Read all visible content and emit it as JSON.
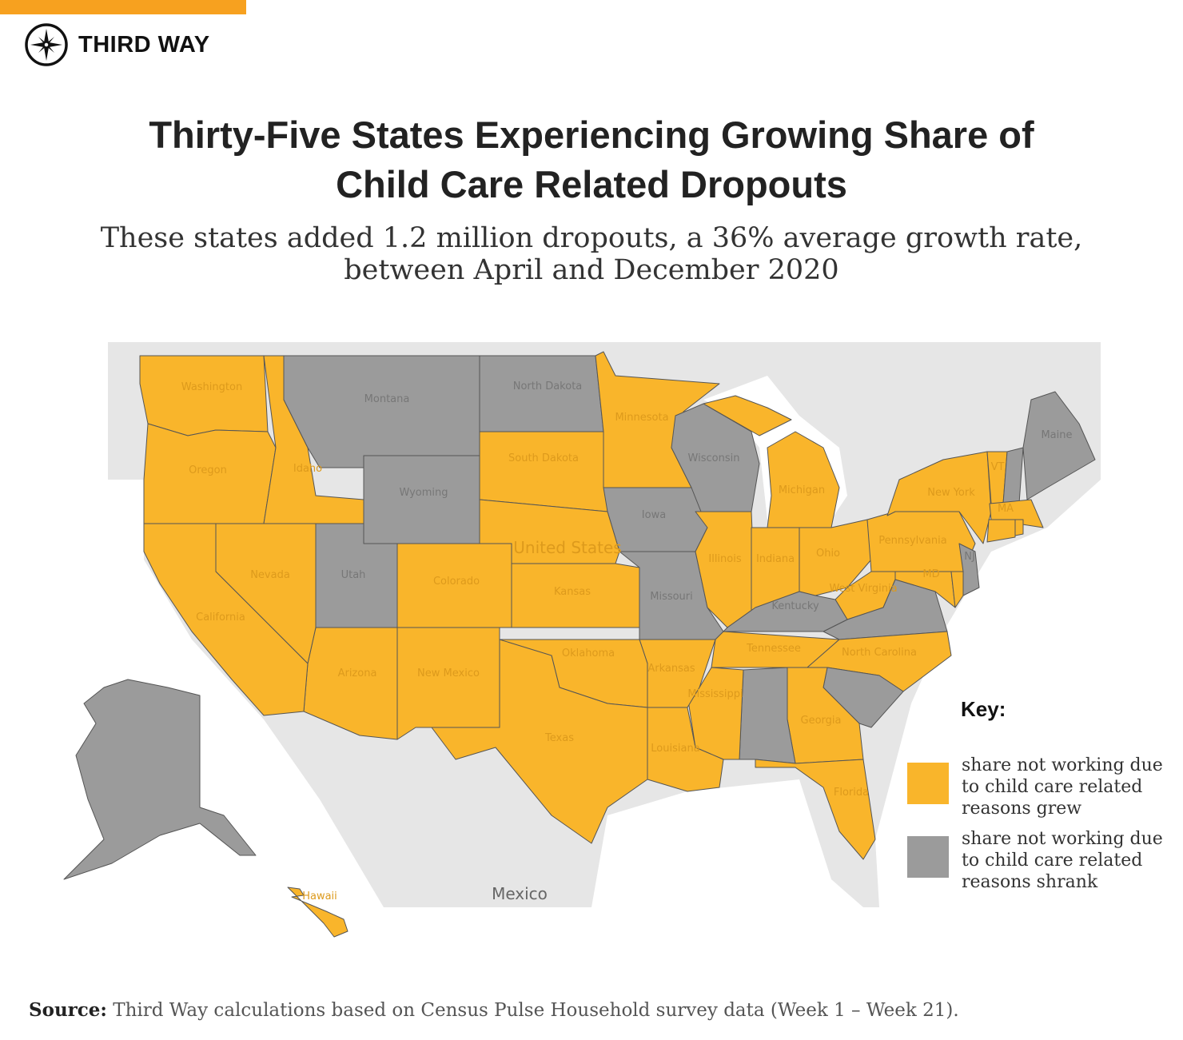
{
  "brand": {
    "name": "THIRD WAY",
    "icon": "compass-icon",
    "accent": "#f7a11f"
  },
  "title_line1": "Thirty-Five States Experiencing Growing Share of",
  "title_line2": "Child Care Related Dropouts",
  "subtitle_line1": "These states added 1.2 million dropouts, a 36% average growth rate,",
  "subtitle_line2": "between April and December 2020",
  "colors": {
    "grew": "#f9b52b",
    "shrank": "#9b9b9b",
    "land": "#e6e6e6",
    "water": "#ffffff"
  },
  "map_labels": {
    "country": "United States",
    "neighbor": "Mexico"
  },
  "states": [
    {
      "id": "WA",
      "label": "Washington",
      "status": "grew"
    },
    {
      "id": "OR",
      "label": "Oregon",
      "status": "grew"
    },
    {
      "id": "ID",
      "label": "Idaho",
      "status": "grew"
    },
    {
      "id": "MT",
      "label": "Montana",
      "status": "shrank"
    },
    {
      "id": "WY",
      "label": "Wyoming",
      "status": "shrank"
    },
    {
      "id": "ND",
      "label": "North Dakota",
      "status": "shrank"
    },
    {
      "id": "SD",
      "label": "South Dakota",
      "status": "grew"
    },
    {
      "id": "MN",
      "label": "Minnesota",
      "status": "grew"
    },
    {
      "id": "WI",
      "label": "Wisconsin",
      "status": "shrank"
    },
    {
      "id": "MI",
      "label": "Michigan",
      "status": "grew"
    },
    {
      "id": "IA",
      "label": "Iowa",
      "status": "shrank"
    },
    {
      "id": "MO",
      "label": "Missouri",
      "status": "shrank"
    },
    {
      "id": "IL",
      "label": "Illinois",
      "status": "grew"
    },
    {
      "id": "IN",
      "label": "Indiana",
      "status": "grew"
    },
    {
      "id": "OH",
      "label": "Ohio",
      "status": "grew"
    },
    {
      "id": "PA",
      "label": "Pennsylvania",
      "status": "grew"
    },
    {
      "id": "NY",
      "label": "New York",
      "status": "grew"
    },
    {
      "id": "VT",
      "label": "VT",
      "status": "grew"
    },
    {
      "id": "NH",
      "label": "",
      "status": "shrank"
    },
    {
      "id": "ME",
      "label": "Maine",
      "status": "shrank"
    },
    {
      "id": "MA",
      "label": "MA",
      "status": "grew"
    },
    {
      "id": "CT",
      "label": "",
      "status": "grew"
    },
    {
      "id": "RI",
      "label": "",
      "status": "grew"
    },
    {
      "id": "NJ",
      "label": "NJ",
      "status": "shrank"
    },
    {
      "id": "MD",
      "label": "MD",
      "status": "grew"
    },
    {
      "id": "DE",
      "label": "",
      "status": "grew"
    },
    {
      "id": "WV",
      "label": "West Virginia",
      "status": "grew"
    },
    {
      "id": "VA",
      "label": "",
      "status": "shrank"
    },
    {
      "id": "KY",
      "label": "Kentucky",
      "status": "shrank"
    },
    {
      "id": "TN",
      "label": "Tennessee",
      "status": "grew"
    },
    {
      "id": "NC",
      "label": "North Carolina",
      "status": "grew"
    },
    {
      "id": "SC",
      "label": "",
      "status": "shrank"
    },
    {
      "id": "GA",
      "label": "Georgia",
      "status": "grew"
    },
    {
      "id": "AL",
      "label": "",
      "status": "shrank"
    },
    {
      "id": "MS",
      "label": "Mississippi",
      "status": "grew"
    },
    {
      "id": "FL",
      "label": "Florida",
      "status": "grew"
    },
    {
      "id": "LA",
      "label": "Louisiana",
      "status": "grew"
    },
    {
      "id": "AR",
      "label": "Arkansas",
      "status": "grew"
    },
    {
      "id": "OK",
      "label": "Oklahoma",
      "status": "grew"
    },
    {
      "id": "TX",
      "label": "Texas",
      "status": "grew"
    },
    {
      "id": "KS",
      "label": "Kansas",
      "status": "grew"
    },
    {
      "id": "NE",
      "label": "",
      "status": "grew"
    },
    {
      "id": "CO",
      "label": "Colorado",
      "status": "grew"
    },
    {
      "id": "NM",
      "label": "New Mexico",
      "status": "grew"
    },
    {
      "id": "AZ",
      "label": "Arizona",
      "status": "grew"
    },
    {
      "id": "UT",
      "label": "Utah",
      "status": "shrank"
    },
    {
      "id": "NV",
      "label": "Nevada",
      "status": "grew"
    },
    {
      "id": "CA",
      "label": "California",
      "status": "grew"
    },
    {
      "id": "AK",
      "label": "",
      "status": "shrank"
    },
    {
      "id": "HI",
      "label": "Hawaii",
      "status": "grew"
    }
  ],
  "key": {
    "title": "Key:",
    "grew": "share not working due to child care related reasons grew",
    "shrank": "share not working due to child care related reasons shrank"
  },
  "source": {
    "label": "Source:",
    "text": "Third Way calculations based on Census Pulse Household survey data (Week 1 – Week 21)."
  }
}
